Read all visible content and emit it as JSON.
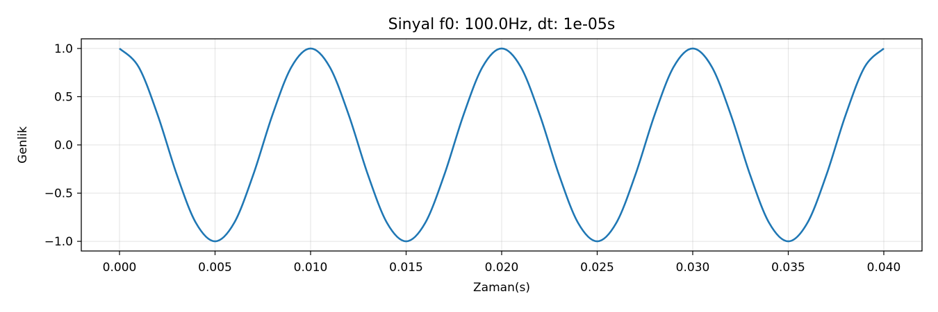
{
  "chart_data": {
    "type": "line",
    "title": "Sinyal f0: 100.0Hz, dt: 1e-05s",
    "xlabel": "Zaman(s)",
    "ylabel": "Genlik",
    "xlim": [
      -0.002,
      0.042
    ],
    "ylim": [
      -1.1,
      1.1
    ],
    "grid": true,
    "legend": "none",
    "xticks": [
      0.0,
      0.005,
      0.01,
      0.015,
      0.02,
      0.025,
      0.03,
      0.035,
      0.04
    ],
    "xtick_labels": [
      "0.000",
      "0.005",
      "0.010",
      "0.015",
      "0.020",
      "0.025",
      "0.030",
      "0.035",
      "0.040"
    ],
    "yticks": [
      -1.0,
      -0.5,
      0.0,
      0.5,
      1.0
    ],
    "ytick_labels": [
      "−1.0",
      "−0.5",
      "0.0",
      "0.5",
      "1.0"
    ],
    "series": [
      {
        "color": "#1f77b4",
        "x": [
          0.0,
          0.001,
          0.002,
          0.003,
          0.004,
          0.005,
          0.006,
          0.007,
          0.008,
          0.009,
          0.01,
          0.011,
          0.012,
          0.013,
          0.014,
          0.015,
          0.016,
          0.017,
          0.018,
          0.019,
          0.02,
          0.021,
          0.022,
          0.023,
          0.024,
          0.025,
          0.026,
          0.027,
          0.028,
          0.029,
          0.03,
          0.031,
          0.032,
          0.033,
          0.034,
          0.035,
          0.036,
          0.037,
          0.038,
          0.039,
          0.04
        ],
        "y": [
          1.0,
          0.809,
          0.309,
          -0.309,
          -0.809,
          -1.0,
          -0.809,
          -0.309,
          0.309,
          0.809,
          1.0,
          0.809,
          0.309,
          -0.309,
          -0.809,
          -1.0,
          -0.809,
          -0.309,
          0.309,
          0.809,
          1.0,
          0.809,
          0.309,
          -0.309,
          -0.809,
          -1.0,
          -0.809,
          -0.309,
          0.309,
          0.809,
          1.0,
          0.809,
          0.309,
          -0.309,
          -0.809,
          -1.0,
          -0.809,
          -0.309,
          0.309,
          0.809,
          1.0
        ]
      }
    ]
  }
}
